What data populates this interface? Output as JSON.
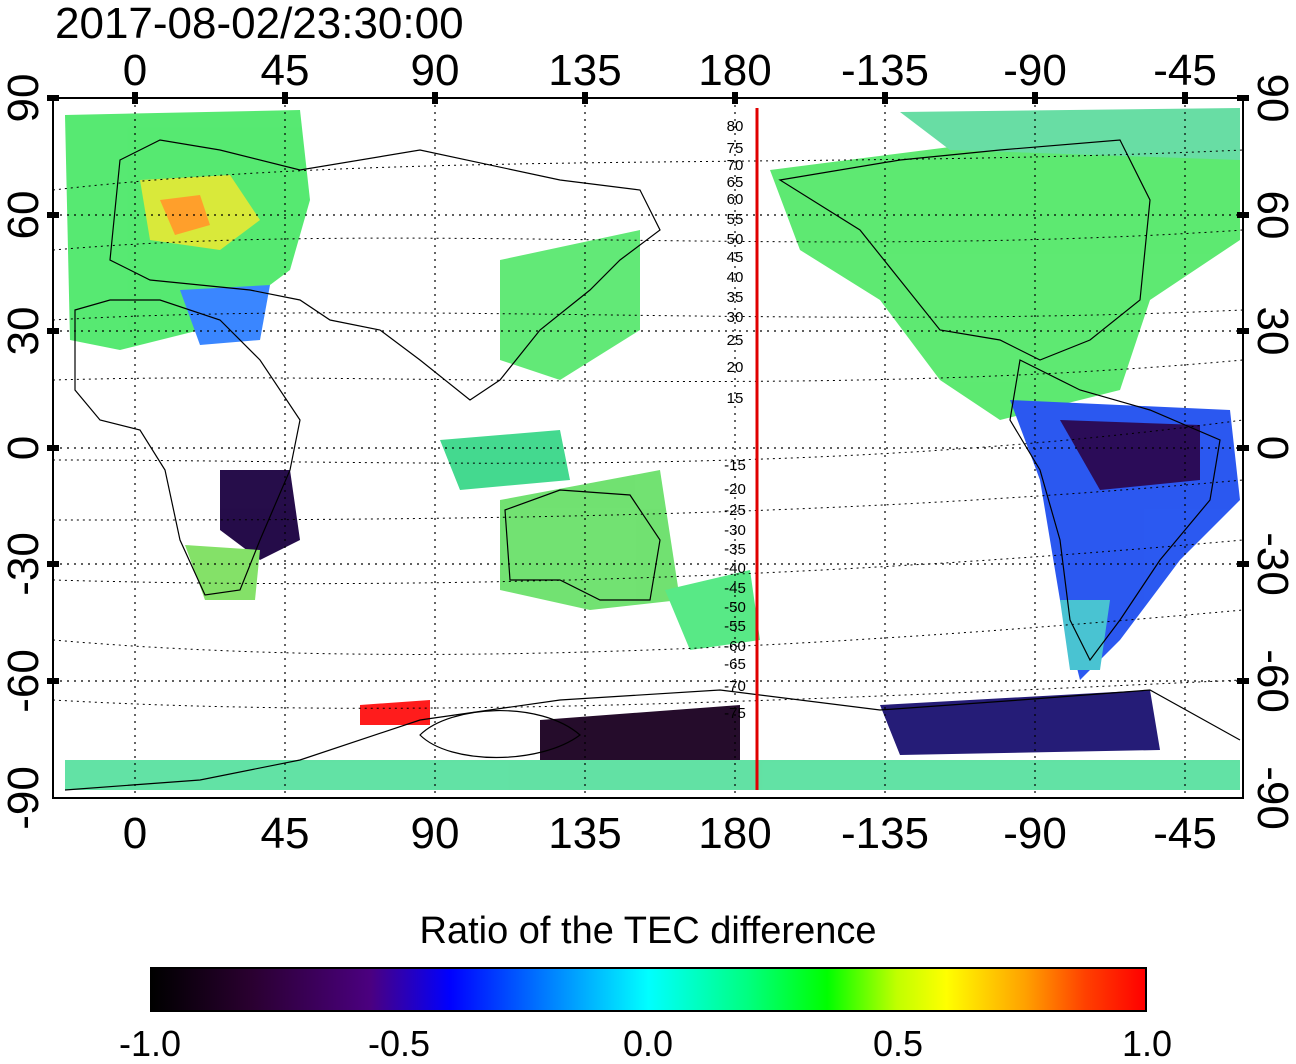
{
  "timestamp": "2017-08-02/23:30:00",
  "map": {
    "lon_ticks": [
      "0",
      "45",
      "90",
      "135",
      "180",
      "-135",
      "-90",
      "-45"
    ],
    "lat_ticks": [
      "90",
      "60",
      "30",
      "0",
      "-30",
      "-60",
      "-90"
    ],
    "magnetic_latitude_labels": [
      "80",
      "75",
      "70",
      "65",
      "60",
      "55",
      "50",
      "45",
      "40",
      "35",
      "30",
      "25",
      "20",
      "15",
      "-15",
      "-20",
      "-25",
      "-30",
      "-35",
      "-40",
      "-45",
      "-50",
      "-55",
      "-60",
      "-65",
      "-70",
      "-75"
    ],
    "terminator_color": "#e00000"
  },
  "colorbar": {
    "title": "Ratio of the TEC difference",
    "ticks": [
      "-1.0",
      "-0.5",
      "0.0",
      "0.5",
      "1.0"
    ],
    "range": [
      -1.0,
      1.0
    ]
  }
}
